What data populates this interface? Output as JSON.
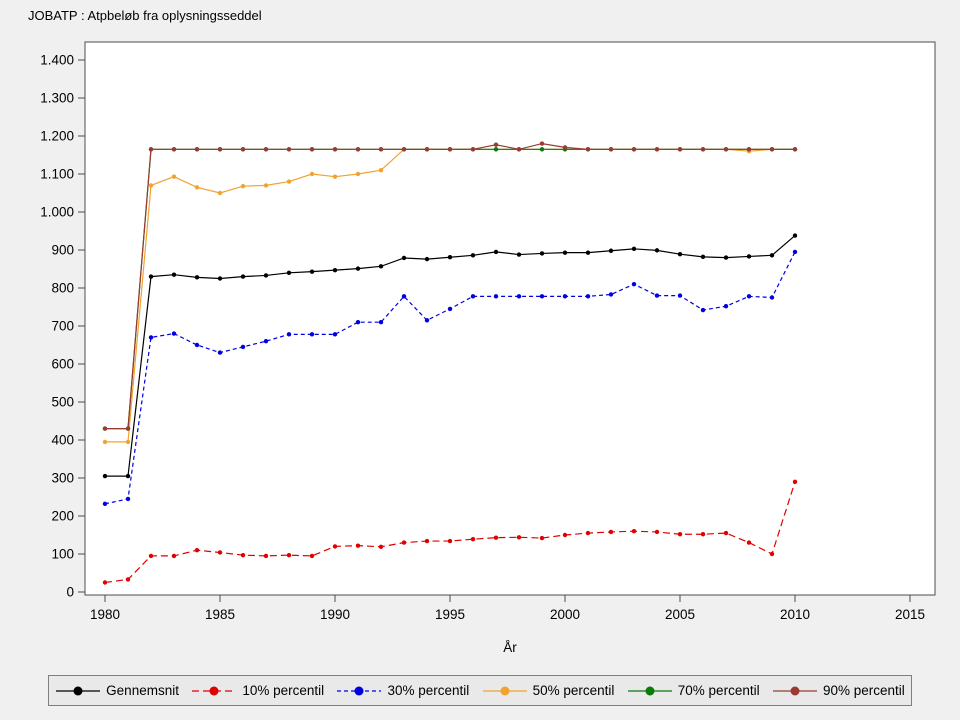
{
  "title": "JOBATP : Atpbeløb fra oplysningsseddel",
  "colors": {
    "background": "#f0f0f0",
    "plot_background": "#ffffff",
    "legend_background": "#e9e9e9",
    "frame": "#4d4d4d"
  },
  "chart_data": {
    "type": "line",
    "title": "JOBATP : Atpbeløb fra oplysningsseddel",
    "xlabel": "År",
    "ylabel": "",
    "grid": false,
    "legend_position": "bottom",
    "xlim": [
      1979,
      2016
    ],
    "ylim": [
      0,
      1400
    ],
    "xticks": [
      1980,
      1985,
      1990,
      1995,
      2000,
      2005,
      2010,
      2015
    ],
    "x_tick_labels": [
      "1980",
      "1985",
      "1990",
      "1995",
      "2000",
      "2005",
      "2010",
      "2015"
    ],
    "yticks": [
      0,
      100,
      200,
      300,
      400,
      500,
      600,
      700,
      800,
      900,
      1000,
      1100,
      1200,
      1300,
      1400
    ],
    "y_tick_labels": [
      "0",
      "100",
      "200",
      "300",
      "400",
      "500",
      "600",
      "700",
      "800",
      "900",
      "1.000",
      "1.100",
      "1.200",
      "1.300",
      "1.400"
    ],
    "x": [
      1980,
      1981,
      1982,
      1983,
      1984,
      1985,
      1986,
      1987,
      1988,
      1989,
      1990,
      1991,
      1992,
      1993,
      1994,
      1995,
      1996,
      1997,
      1998,
      1999,
      2000,
      2001,
      2002,
      2003,
      2004,
      2005,
      2006,
      2007,
      2008,
      2009,
      2010
    ],
    "series": [
      {
        "id": "gennemsnit",
        "name": "Gennemsnit",
        "color": "#000000",
        "dash": "",
        "values": [
          305,
          305,
          830,
          835,
          828,
          825,
          830,
          833,
          840,
          843,
          847,
          851,
          857,
          879,
          876,
          881,
          886,
          895,
          888,
          891,
          893,
          893,
          898,
          903,
          899,
          889,
          882,
          880,
          883,
          886,
          938
        ]
      },
      {
        "id": "p10",
        "name": "10% percentil",
        "color": "#e00000",
        "dash": "7,4",
        "values": [
          25,
          33,
          95,
          95,
          110,
          104,
          97,
          95,
          97,
          95,
          120,
          122,
          119,
          130,
          134,
          134,
          139,
          143,
          144,
          142,
          150,
          155,
          158,
          160,
          158,
          152,
          152,
          155,
          130,
          100,
          290
        ]
      },
      {
        "id": "p30",
        "name": "30% percentil",
        "color": "#0000e0",
        "dash": "4,3",
        "values": [
          232,
          245,
          670,
          680,
          650,
          630,
          645,
          660,
          678,
          678,
          678,
          710,
          710,
          778,
          715,
          745,
          778,
          778,
          778,
          778,
          778,
          778,
          783,
          810,
          780,
          780,
          742,
          752,
          778,
          775,
          895
        ]
      },
      {
        "id": "p50",
        "name": "50% percentil",
        "color": "#f0a330",
        "dash": "",
        "values": [
          395,
          395,
          1070,
          1093,
          1065,
          1050,
          1068,
          1070,
          1080,
          1100,
          1093,
          1100,
          1110,
          1165,
          1165,
          1165,
          1165,
          1165,
          1165,
          1165,
          1165,
          1165,
          1165,
          1165,
          1165,
          1165,
          1165,
          1165,
          1160,
          1165,
          1165
        ]
      },
      {
        "id": "p70",
        "name": "70% percentil",
        "color": "#0a7a0a",
        "dash": "",
        "values": [
          430,
          430,
          1165,
          1165,
          1165,
          1165,
          1165,
          1165,
          1165,
          1165,
          1165,
          1165,
          1165,
          1165,
          1165,
          1165,
          1165,
          1165,
          1165,
          1165,
          1165,
          1165,
          1165,
          1165,
          1165,
          1165,
          1165,
          1165,
          1165,
          1165,
          1165
        ]
      },
      {
        "id": "p90",
        "name": "90% percentil",
        "color": "#993b33",
        "dash": "",
        "values": [
          430,
          430,
          1165,
          1165,
          1165,
          1165,
          1165,
          1165,
          1165,
          1165,
          1165,
          1165,
          1165,
          1165,
          1165,
          1165,
          1165,
          1177,
          1165,
          1180,
          1170,
          1165,
          1165,
          1165,
          1165,
          1165,
          1165,
          1165,
          1165,
          1165,
          1165
        ]
      }
    ]
  }
}
